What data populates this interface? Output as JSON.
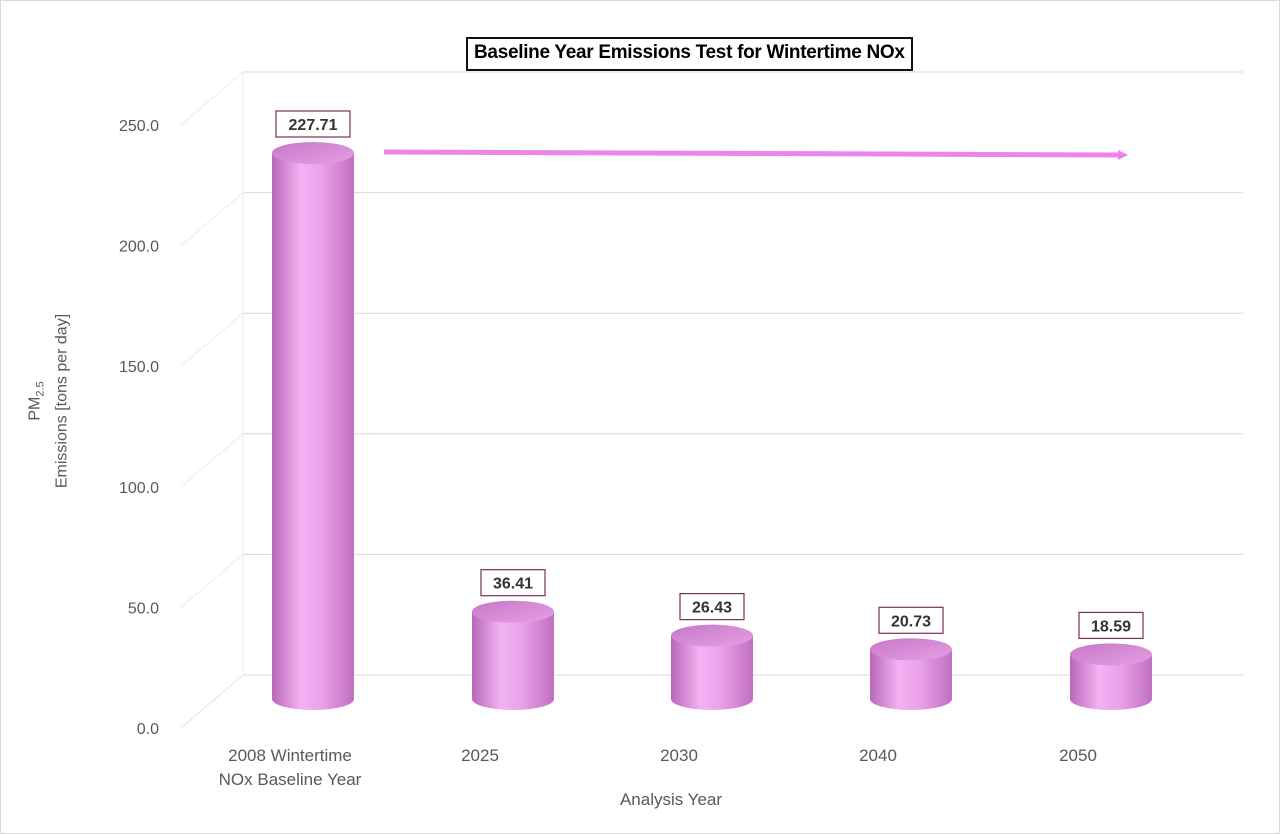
{
  "chart_data": {
    "type": "bar",
    "title": "Baseline Year Emissions Test for Wintertime NOx",
    "xlabel": "Analysis Year",
    "ylabel": {
      "main": "PM",
      "subscript": "2.5",
      "second_line": "Emissions [tons per day]"
    },
    "categories": [
      [
        "2008 Wintertime",
        "NOx Baseline Year"
      ],
      [
        "2025"
      ],
      [
        "2030"
      ],
      [
        "2040"
      ],
      [
        "2050"
      ]
    ],
    "values": [
      227.71,
      36.41,
      26.43,
      20.73,
      18.59
    ],
    "data_labels": [
      "227.71",
      "36.41",
      "26.43",
      "20.73",
      "18.59"
    ],
    "ylim": [
      0,
      250
    ],
    "yticks": [
      "0.0",
      "50.0",
      "100.0",
      "150.0",
      "200.0",
      "250.0"
    ],
    "grid": true,
    "bar_style": "3d-cylinder",
    "colors": {
      "bar": "#e89ee8",
      "bar_dark": "#b861b8",
      "bar_top": "#d98bd9",
      "arrow": "#ee82ee",
      "gridline": "#d9d9d9",
      "label_border": "#7b2d5c"
    },
    "annotation": "arrow pointing right from the 2008 baseline level"
  }
}
